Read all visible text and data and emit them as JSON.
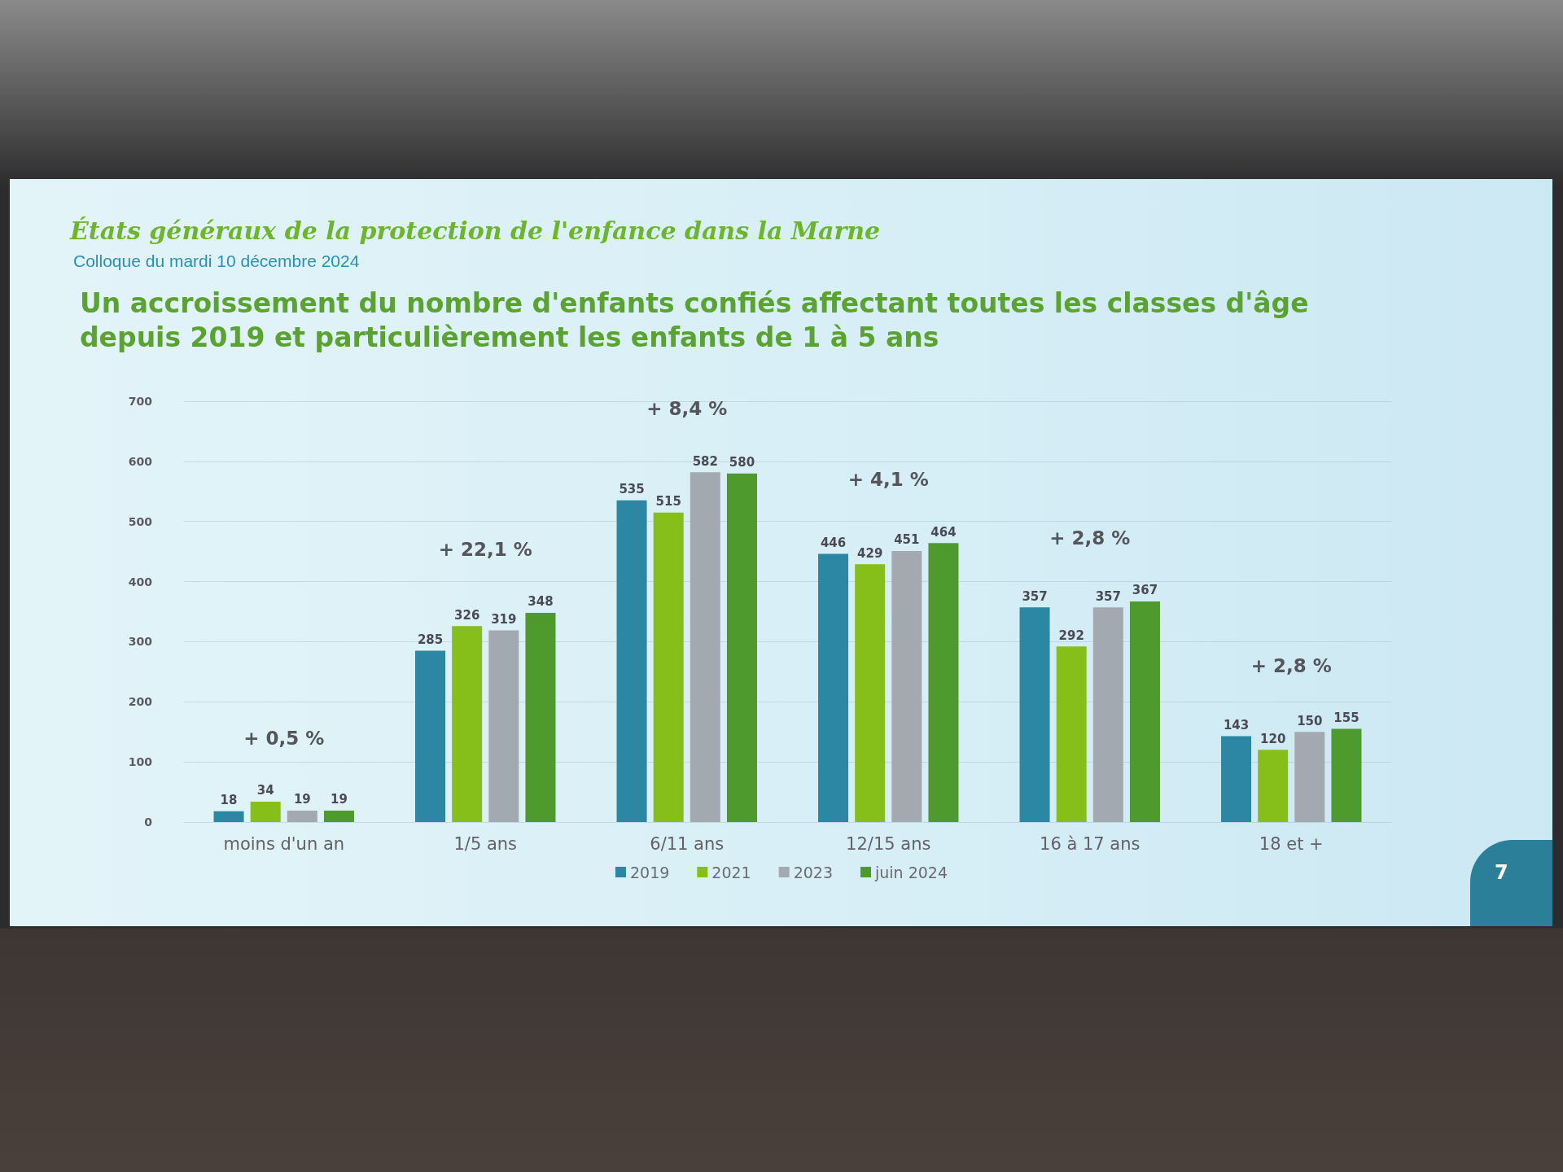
{
  "chart_data": {
    "type": "bar",
    "title": "Un accroissement du nombre d'enfants confiés affectant toutes les classes d'âge depuis 2019 et particulièrement les enfants de 1 à 5 ans",
    "categories": [
      "moins d'un an",
      "1/5 ans",
      "6/11 ans",
      "12/15 ans",
      "16 à 17 ans",
      "18 et +"
    ],
    "series": [
      {
        "name": "2019",
        "color": "#2b87a3",
        "values": [
          18,
          285,
          535,
          446,
          357,
          143
        ]
      },
      {
        "name": "2021",
        "color": "#86bf1a",
        "values": [
          34,
          326,
          515,
          429,
          292,
          120
        ]
      },
      {
        "name": "2023",
        "color": "#a3a9b0",
        "values": [
          19,
          319,
          582,
          451,
          357,
          150
        ]
      },
      {
        "name": "juin 2024",
        "color": "#4f9a2c",
        "values": [
          19,
          348,
          580,
          464,
          367,
          155
        ]
      }
    ],
    "ylim": [
      0,
      700
    ],
    "yticks": [
      0,
      100,
      200,
      300,
      400,
      500,
      600,
      700
    ],
    "grid": "y",
    "legend": "bottom",
    "data_labels": true,
    "annotations": [
      "États généraux de la protection de l'enfance dans la Marne",
      "Colloque du mardi 10 décembre 2024",
      "+ 0,5 %",
      "+ 22,1 %",
      "+ 8,4 %",
      "+ 4,1 %",
      "+ 2,8 %",
      "+ 2,8 %",
      "7"
    ]
  }
}
